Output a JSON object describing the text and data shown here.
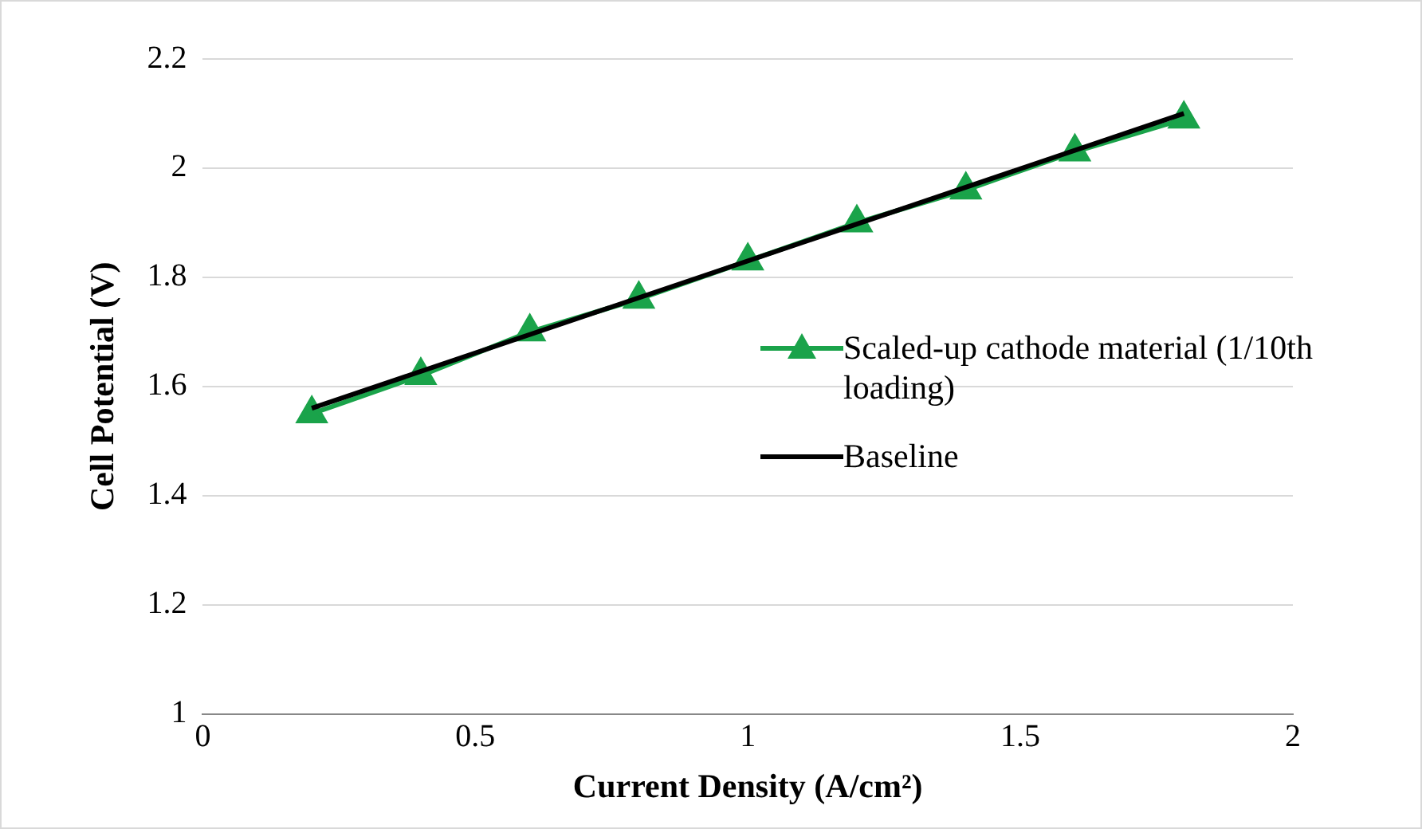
{
  "chart_data": {
    "type": "line",
    "xlabel": "Current Density (A/cm²)",
    "ylabel": "Cell Potential (V)",
    "x": [
      0.2,
      0.4,
      0.6,
      0.8,
      1.0,
      1.2,
      1.4,
      1.6,
      1.8
    ],
    "series": [
      {
        "name": "Scaled-up cathode material (1/10th loading)",
        "color": "#1aa34a",
        "marker": "triangle",
        "values": [
          1.55,
          1.62,
          1.7,
          1.76,
          1.83,
          1.9,
          1.96,
          2.03,
          2.09
        ]
      },
      {
        "name": "Baseline",
        "color": "#000000",
        "marker": "none",
        "x": [
          0.2,
          1.8
        ],
        "values": [
          1.56,
          2.1
        ]
      }
    ],
    "xlim": [
      0,
      2
    ],
    "xticks": [
      0,
      0.5,
      1,
      1.5,
      2
    ],
    "ylim": [
      1,
      2.2
    ],
    "yticks": [
      1,
      1.2,
      1.4,
      1.6,
      1.8,
      2,
      2.2
    ],
    "grid": "y",
    "legend": "right",
    "line_style": "solid"
  }
}
